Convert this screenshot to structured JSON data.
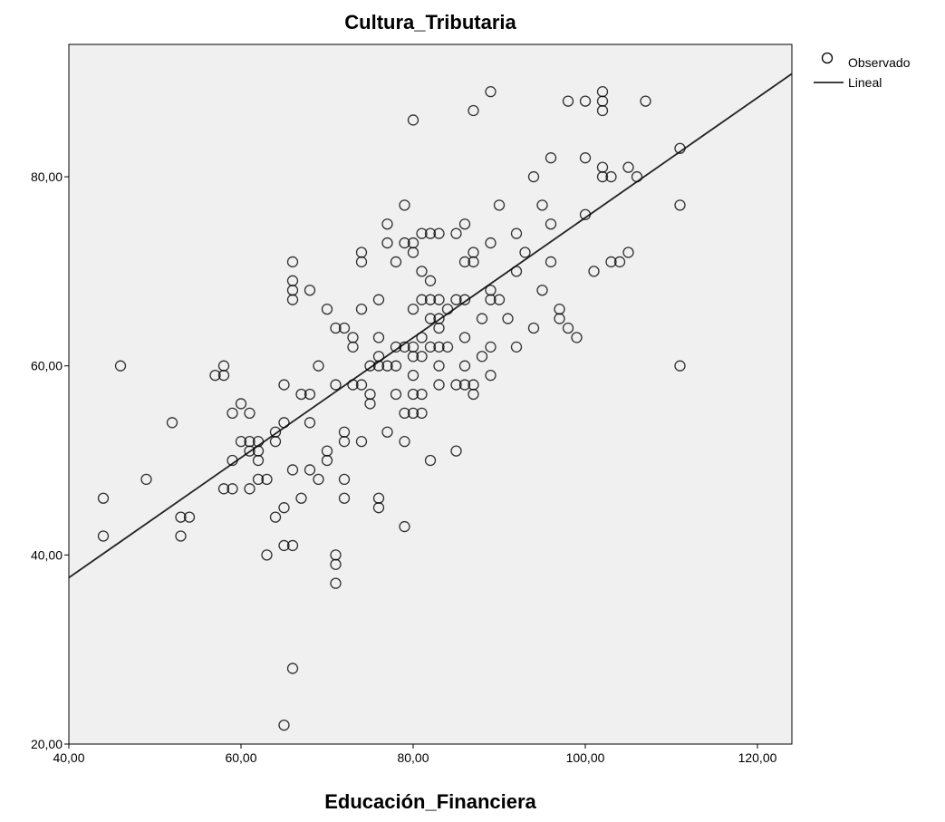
{
  "chart_data": {
    "type": "scatter",
    "title": "Cultura_Tributaria",
    "xlabel": "Educación_Financiera",
    "ylabel": "",
    "xlim": [
      40,
      124
    ],
    "ylim": [
      20,
      94
    ],
    "x_ticks": [
      40,
      60,
      80,
      100,
      120
    ],
    "x_tick_labels": [
      "40,00",
      "60,00",
      "80,00",
      "100,00",
      "120,00"
    ],
    "y_ticks": [
      20,
      40,
      60,
      80
    ],
    "y_tick_labels": [
      "20,00",
      "40,00",
      "60,00",
      "80,00"
    ],
    "plot_background": "#f0f0f0",
    "legend": {
      "position": "top-right-outside",
      "entries": [
        {
          "label": "Observado",
          "marker": "circle"
        },
        {
          "label": "Lineal",
          "marker": "line"
        }
      ]
    },
    "series": [
      {
        "name": "Observado",
        "points": [
          [
            44,
            46
          ],
          [
            44,
            42
          ],
          [
            46,
            60
          ],
          [
            49,
            48
          ],
          [
            52,
            54
          ],
          [
            53,
            44
          ],
          [
            53,
            42
          ],
          [
            54,
            44
          ],
          [
            57,
            59
          ],
          [
            58,
            60
          ],
          [
            58,
            59
          ],
          [
            58,
            47
          ],
          [
            59,
            55
          ],
          [
            59,
            50
          ],
          [
            59,
            47
          ],
          [
            60,
            56
          ],
          [
            60,
            52
          ],
          [
            61,
            55
          ],
          [
            61,
            52
          ],
          [
            61,
            51
          ],
          [
            61,
            47
          ],
          [
            62,
            52
          ],
          [
            62,
            51
          ],
          [
            62,
            50
          ],
          [
            62,
            48
          ],
          [
            63,
            48
          ],
          [
            63,
            40
          ],
          [
            64,
            53
          ],
          [
            64,
            52
          ],
          [
            64,
            44
          ],
          [
            65,
            58
          ],
          [
            65,
            54
          ],
          [
            65,
            45
          ],
          [
            65,
            41
          ],
          [
            65,
            22
          ],
          [
            66,
            71
          ],
          [
            66,
            69
          ],
          [
            66,
            68
          ],
          [
            66,
            67
          ],
          [
            66,
            49
          ],
          [
            66,
            41
          ],
          [
            66,
            28
          ],
          [
            67,
            57
          ],
          [
            67,
            46
          ],
          [
            68,
            68
          ],
          [
            68,
            57
          ],
          [
            68,
            54
          ],
          [
            68,
            49
          ],
          [
            69,
            60
          ],
          [
            69,
            48
          ],
          [
            70,
            66
          ],
          [
            70,
            51
          ],
          [
            70,
            50
          ],
          [
            71,
            64
          ],
          [
            71,
            58
          ],
          [
            71,
            40
          ],
          [
            71,
            39
          ],
          [
            71,
            37
          ],
          [
            72,
            64
          ],
          [
            72,
            53
          ],
          [
            72,
            52
          ],
          [
            72,
            48
          ],
          [
            72,
            46
          ],
          [
            73,
            63
          ],
          [
            73,
            62
          ],
          [
            73,
            58
          ],
          [
            74,
            72
          ],
          [
            74,
            71
          ],
          [
            74,
            66
          ],
          [
            74,
            58
          ],
          [
            74,
            52
          ],
          [
            75,
            60
          ],
          [
            75,
            57
          ],
          [
            75,
            56
          ],
          [
            76,
            67
          ],
          [
            76,
            63
          ],
          [
            76,
            61
          ],
          [
            76,
            60
          ],
          [
            76,
            46
          ],
          [
            76,
            45
          ],
          [
            77,
            75
          ],
          [
            77,
            73
          ],
          [
            77,
            60
          ],
          [
            77,
            53
          ],
          [
            78,
            71
          ],
          [
            78,
            62
          ],
          [
            78,
            60
          ],
          [
            78,
            57
          ],
          [
            79,
            77
          ],
          [
            79,
            73
          ],
          [
            79,
            62
          ],
          [
            79,
            55
          ],
          [
            79,
            52
          ],
          [
            79,
            43
          ],
          [
            80,
            86
          ],
          [
            80,
            73
          ],
          [
            80,
            72
          ],
          [
            80,
            66
          ],
          [
            80,
            62
          ],
          [
            80,
            61
          ],
          [
            80,
            59
          ],
          [
            80,
            57
          ],
          [
            80,
            55
          ],
          [
            81,
            74
          ],
          [
            81,
            70
          ],
          [
            81,
            67
          ],
          [
            81,
            63
          ],
          [
            81,
            61
          ],
          [
            81,
            57
          ],
          [
            81,
            55
          ],
          [
            82,
            74
          ],
          [
            82,
            69
          ],
          [
            82,
            67
          ],
          [
            82,
            65
          ],
          [
            82,
            62
          ],
          [
            82,
            50
          ],
          [
            83,
            74
          ],
          [
            83,
            67
          ],
          [
            83,
            65
          ],
          [
            83,
            64
          ],
          [
            83,
            62
          ],
          [
            83,
            60
          ],
          [
            83,
            58
          ],
          [
            84,
            66
          ],
          [
            84,
            62
          ],
          [
            85,
            74
          ],
          [
            85,
            67
          ],
          [
            85,
            58
          ],
          [
            85,
            51
          ],
          [
            86,
            75
          ],
          [
            86,
            71
          ],
          [
            86,
            67
          ],
          [
            86,
            63
          ],
          [
            86,
            60
          ],
          [
            86,
            58
          ],
          [
            87,
            87
          ],
          [
            87,
            72
          ],
          [
            87,
            71
          ],
          [
            87,
            58
          ],
          [
            87,
            57
          ],
          [
            88,
            65
          ],
          [
            88,
            61
          ],
          [
            89,
            89
          ],
          [
            89,
            73
          ],
          [
            89,
            68
          ],
          [
            89,
            67
          ],
          [
            89,
            62
          ],
          [
            89,
            59
          ],
          [
            90,
            77
          ],
          [
            90,
            67
          ],
          [
            91,
            65
          ],
          [
            92,
            74
          ],
          [
            92,
            70
          ],
          [
            92,
            62
          ],
          [
            93,
            72
          ],
          [
            94,
            80
          ],
          [
            94,
            64
          ],
          [
            95,
            77
          ],
          [
            95,
            68
          ],
          [
            96,
            82
          ],
          [
            96,
            75
          ],
          [
            96,
            71
          ],
          [
            97,
            66
          ],
          [
            97,
            65
          ],
          [
            98,
            88
          ],
          [
            98,
            64
          ],
          [
            99,
            63
          ],
          [
            100,
            88
          ],
          [
            100,
            82
          ],
          [
            100,
            76
          ],
          [
            101,
            70
          ],
          [
            102,
            89
          ],
          [
            102,
            88
          ],
          [
            102,
            87
          ],
          [
            102,
            81
          ],
          [
            102,
            80
          ],
          [
            103,
            80
          ],
          [
            103,
            71
          ],
          [
            104,
            71
          ],
          [
            105,
            81
          ],
          [
            105,
            72
          ],
          [
            106,
            80
          ],
          [
            107,
            88
          ],
          [
            111,
            83
          ],
          [
            111,
            77
          ],
          [
            111,
            60
          ]
        ]
      },
      {
        "name": "Lineal",
        "type": "line",
        "x": [
          40,
          124
        ],
        "y": [
          37.6,
          90.9
        ]
      }
    ]
  }
}
